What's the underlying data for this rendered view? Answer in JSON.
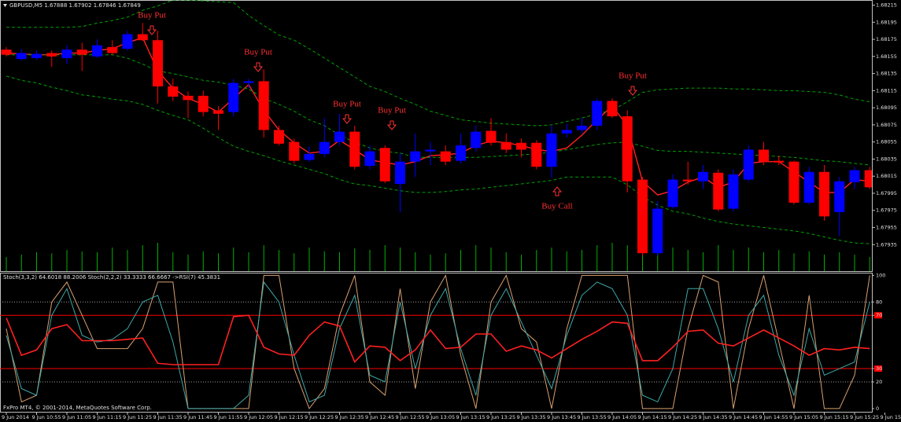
{
  "chart_data": [
    {
      "type": "candlestick",
      "title": "GBPUSD,M5 1.67888 1.67902 1.67846 1.67849",
      "up_color": "#0000ff",
      "down_color": "#ff0000",
      "open": [
        1.68163,
        1.68152,
        1.68153,
        1.68159,
        1.68153,
        1.68163,
        1.68155,
        1.68166,
        1.68164,
        1.68181,
        1.68174,
        1.6812,
        1.68109,
        1.68109,
        1.68092,
        1.6809,
        1.68124,
        1.68126,
        1.68069,
        1.68055,
        1.68034,
        1.68041,
        1.68055,
        1.68067,
        1.68027,
        1.68048,
        1.68006,
        1.68032,
        1.68044,
        1.68044,
        1.68033,
        1.68048,
        1.68068,
        1.68055,
        1.68054,
        1.68054,
        1.68026,
        1.68065,
        1.68069,
        1.68074,
        1.68103,
        1.68085,
        1.68011,
        1.67925,
        1.67979,
        1.68011,
        1.68009,
        1.68019,
        1.67977,
        1.68011,
        1.68046,
        1.68033,
        1.68032,
        1.67984,
        1.6802,
        1.67973,
        1.68008,
        1.68022
      ],
      "high": [
        1.68166,
        1.68164,
        1.68162,
        1.68162,
        1.68168,
        1.68171,
        1.68175,
        1.68174,
        1.68185,
        1.68194,
        1.68185,
        1.68129,
        1.68114,
        1.68115,
        1.68097,
        1.68129,
        1.68129,
        1.6814,
        1.68074,
        1.68059,
        1.6805,
        1.68083,
        1.68088,
        1.68074,
        1.68051,
        1.68051,
        1.68042,
        1.68065,
        1.68055,
        1.68051,
        1.68065,
        1.68074,
        1.68083,
        1.68065,
        1.68059,
        1.68057,
        1.68074,
        1.68076,
        1.68083,
        1.68106,
        1.68106,
        1.68092,
        1.68014,
        1.67986,
        1.68017,
        1.68032,
        1.68028,
        1.68023,
        1.68023,
        1.68051,
        1.68055,
        1.68039,
        1.68033,
        1.68026,
        1.68028,
        1.68014,
        1.68026,
        1.68026
      ],
      "low": [
        1.68155,
        1.6815,
        1.68151,
        1.68143,
        1.68146,
        1.68138,
        1.68153,
        1.68157,
        1.68162,
        1.68173,
        1.681,
        1.68103,
        1.68083,
        1.68085,
        1.68069,
        1.68085,
        1.68118,
        1.6806,
        1.68051,
        1.6803,
        1.68032,
        1.68037,
        1.68051,
        1.68023,
        1.68023,
        1.68007,
        1.67973,
        1.68014,
        1.68028,
        1.68028,
        1.6803,
        1.68044,
        1.68051,
        1.68042,
        1.68037,
        1.68023,
        1.68013,
        1.6806,
        1.68065,
        1.68069,
        1.68083,
        1.67996,
        1.67922,
        1.67922,
        1.67977,
        1.68005,
        1.68,
        1.67974,
        1.67974,
        1.68009,
        1.68028,
        1.68028,
        1.67982,
        1.67982,
        1.67963,
        1.67945,
        1.68,
        1.68
      ],
      "close": [
        1.68157,
        1.68159,
        1.68158,
        1.68155,
        1.68163,
        1.68157,
        1.68168,
        1.68159,
        1.68181,
        1.68174,
        1.6812,
        1.68108,
        1.68104,
        1.6809,
        1.68088,
        1.68124,
        1.68126,
        1.68069,
        1.68053,
        1.68033,
        1.68041,
        1.68055,
        1.68067,
        1.68026,
        1.68044,
        1.68009,
        1.68032,
        1.68044,
        1.68046,
        1.68032,
        1.68051,
        1.68067,
        1.68054,
        1.68046,
        1.68046,
        1.68026,
        1.68065,
        1.68069,
        1.68074,
        1.68103,
        1.68085,
        1.68009,
        1.67925,
        1.67977,
        1.68011,
        1.68009,
        1.6802,
        1.67976,
        1.68017,
        1.68046,
        1.68032,
        1.68031,
        1.67984,
        1.6802,
        1.67968,
        1.68009,
        1.68022,
        1.68002
      ],
      "lines": [
        {
          "color": "#ff2020",
          "dashed": false,
          "values": [
            1.68159,
            1.68158,
            1.68157,
            1.68157,
            1.68159,
            1.68159,
            1.68162,
            1.68164,
            1.68171,
            1.68177,
            1.68138,
            1.68118,
            1.68106,
            1.68099,
            1.6809,
            1.68106,
            1.68122,
            1.68092,
            1.68069,
            1.68054,
            1.68042,
            1.68044,
            1.68057,
            1.68046,
            1.68034,
            1.68031,
            1.68028,
            1.68032,
            1.68039,
            1.6804,
            1.68042,
            1.68051,
            1.68056,
            1.68054,
            1.68051,
            1.68046,
            1.68044,
            1.68048,
            1.68063,
            1.68081,
            1.68097,
            1.68074,
            1.68009,
            1.67993,
            1.67998,
            1.68008,
            1.68014,
            1.68002,
            1.68008,
            1.6803,
            1.68032,
            1.68032,
            1.6802,
            1.68008,
            1.67996,
            1.67996,
            1.68011,
            1.68009
          ]
        },
        {
          "color": "#00a000",
          "dashed": true,
          "values": [
            1.68189,
            1.68189,
            1.68189,
            1.68189,
            1.68189,
            1.6819,
            1.68194,
            1.68197,
            1.68201,
            1.68209,
            1.68214,
            1.68221,
            1.68221,
            1.6822,
            1.68219,
            1.68218,
            1.68203,
            1.68191,
            1.6818,
            1.68174,
            1.68164,
            1.68153,
            1.68142,
            1.68131,
            1.6812,
            1.68114,
            1.68106,
            1.68099,
            1.68091,
            1.68086,
            1.68081,
            1.68079,
            1.68077,
            1.68076,
            1.68075,
            1.68074,
            1.68075,
            1.68079,
            1.68083,
            1.68088,
            1.68092,
            1.68102,
            1.68113,
            1.68116,
            1.68117,
            1.68118,
            1.68118,
            1.68118,
            1.68117,
            1.68117,
            1.68116,
            1.68115,
            1.68115,
            1.68114,
            1.68113,
            1.6811,
            1.68105,
            1.68102
          ]
        },
        {
          "color": "#00a000",
          "dashed": true,
          "values": [
            1.68157,
            1.68157,
            1.68157,
            1.68157,
            1.68157,
            1.68157,
            1.68157,
            1.68157,
            1.68153,
            1.68146,
            1.68138,
            1.68135,
            1.68131,
            1.68127,
            1.68125,
            1.68121,
            1.68117,
            1.68106,
            1.68099,
            1.68091,
            1.68081,
            1.68074,
            1.68063,
            1.68055,
            1.68048,
            1.68044,
            1.68042,
            1.68037,
            1.68037,
            1.68037,
            1.68037,
            1.68037,
            1.68038,
            1.68039,
            1.6804,
            1.68041,
            1.68043,
            1.68046,
            1.68049,
            1.68052,
            1.68054,
            1.68055,
            1.6805,
            1.68045,
            1.68044,
            1.68044,
            1.68043,
            1.68042,
            1.68041,
            1.6804,
            1.68039,
            1.68038,
            1.68037,
            1.68035,
            1.68033,
            1.68032,
            1.6803,
            1.68028
          ]
        },
        {
          "color": "#00a000",
          "dashed": true,
          "values": [
            1.68132,
            1.68127,
            1.68124,
            1.68119,
            1.68115,
            1.6811,
            1.68108,
            1.68105,
            1.68103,
            1.68099,
            1.68092,
            1.68086,
            1.68081,
            1.68071,
            1.6806,
            1.6805,
            1.68044,
            1.68039,
            1.68033,
            1.68028,
            1.68023,
            1.68018,
            1.68011,
            1.68006,
            1.68004,
            1.68001,
            1.67998,
            1.67996,
            1.67996,
            1.67997,
            1.67999,
            1.68,
            1.68002,
            1.68004,
            1.68006,
            1.68008,
            1.6801,
            1.68014,
            1.68014,
            1.68014,
            1.68014,
            1.68005,
            1.67991,
            1.67981,
            1.67974,
            1.67971,
            1.67966,
            1.67962,
            1.67959,
            1.67957,
            1.67955,
            1.67953,
            1.67951,
            1.67948,
            1.67944,
            1.6794,
            1.67937,
            1.67936
          ]
        }
      ],
      "volume": [
        30,
        35,
        40,
        38,
        45,
        42,
        40,
        50,
        45,
        55,
        60,
        40,
        35,
        42,
        38,
        50,
        40,
        55,
        45,
        38,
        50,
        42,
        40,
        48,
        45,
        55,
        50,
        40,
        35,
        38,
        45,
        55,
        50,
        40,
        35,
        45,
        50,
        42,
        45,
        55,
        60,
        55,
        70,
        65,
        50,
        45,
        40,
        55,
        45,
        50,
        40,
        45,
        38,
        42,
        35,
        40,
        35,
        30
      ],
      "volume_color": "#00b000",
      "volume_lim": [
        0,
        100
      ],
      "ylim": [
        1.67904,
        1.68221
      ],
      "yticks": [
        1.68215,
        1.68195,
        1.68175,
        1.68155,
        1.68135,
        1.68115,
        1.68095,
        1.68075,
        1.68055,
        1.68035,
        1.68015,
        1.67995,
        1.67975,
        1.67955,
        1.67935
      ],
      "annotations": [
        "Buy Put",
        "Buy Put",
        "Buy Put",
        "Buy Put",
        "Buy Put",
        "Buy Call"
      ]
    },
    {
      "type": "oscillator",
      "title": "Stoch(3,3,2) 64.6018 88.2006  Stoch(2,2,2) 33.3333 66.6667  ->RSI(7) 45.3831",
      "lines": [
        {
          "color": "#d9a070",
          "width": 1,
          "values": [
            60,
            5,
            10,
            80,
            95,
            70,
            45,
            45,
            45,
            60,
            95,
            95,
            0,
            0,
            0,
            0,
            0,
            100,
            100,
            30,
            0,
            15,
            70,
            100,
            20,
            10,
            90,
            15,
            80,
            100,
            40,
            0,
            80,
            100,
            60,
            50,
            0,
            60,
            100,
            100,
            100,
            100,
            0,
            0,
            0,
            60,
            100,
            95,
            0,
            60,
            100,
            50,
            0,
            85,
            0,
            0,
            25,
            100
          ]
        },
        {
          "color": "#40a8a8",
          "width": 1,
          "values": [
            55,
            15,
            10,
            70,
            90,
            55,
            50,
            52,
            60,
            80,
            85,
            50,
            0,
            0,
            0,
            0,
            10,
            95,
            80,
            40,
            5,
            10,
            60,
            85,
            25,
            20,
            80,
            30,
            70,
            90,
            45,
            10,
            70,
            90,
            65,
            40,
            15,
            55,
            85,
            95,
            90,
            70,
            10,
            5,
            30,
            90,
            90,
            60,
            20,
            70,
            85,
            40,
            10,
            60,
            25,
            30,
            35,
            80
          ]
        },
        {
          "color": "#ff2020",
          "width": 1.6,
          "values": [
            68,
            40,
            44,
            60,
            63,
            51,
            51,
            51,
            52,
            53,
            34,
            33,
            33,
            33,
            33,
            69,
            70,
            46,
            41,
            40,
            55,
            65,
            62,
            35,
            47,
            46,
            36,
            44,
            59,
            45,
            46,
            56,
            56,
            43,
            47,
            44,
            38,
            45,
            52,
            58,
            65,
            64,
            36,
            36,
            46,
            58,
            59,
            49,
            47,
            53,
            59,
            53,
            47,
            40,
            45,
            44,
            46,
            45
          ]
        }
      ],
      "ylim": [
        -3,
        102
      ],
      "yticks": [
        100,
        80,
        70,
        30,
        20,
        0
      ],
      "red_levels": [
        70,
        30
      ],
      "dotted_levels": [
        80,
        20
      ],
      "footer": "FxPro MT4, © 2001-2014, MetaQuotes Software Corp.",
      "time_labels": [
        "9 Jun 2014",
        "9 Jun 10:55",
        "9 Jun 11:05",
        "9 Jun 11:15",
        "9 Jun 11:25",
        "9 Jun 11:35",
        "9 Jun 11:45",
        "9 Jun 11:55",
        "9 Jun 12:05",
        "9 Jun 12:15",
        "9 Jun 12:25",
        "9 Jun 12:35",
        "9 Jun 12:45",
        "9 Jun 12:55",
        "9 Jun 13:05",
        "9 Jun 13:15",
        "9 Jun 13:25",
        "9 Jun 13:35",
        "9 Jun 13:45",
        "9 Jun 13:55",
        "9 Jun 14:05",
        "9 Jun 14:15",
        "9 Jun 14:25",
        "9 Jun 14:35",
        "9 Jun 14:45",
        "9 Jun 14:55",
        "9 Jun 15:05",
        "9 Jun 15:15",
        "9 Jun 15:25",
        "9 Jun 15:35"
      ]
    }
  ]
}
